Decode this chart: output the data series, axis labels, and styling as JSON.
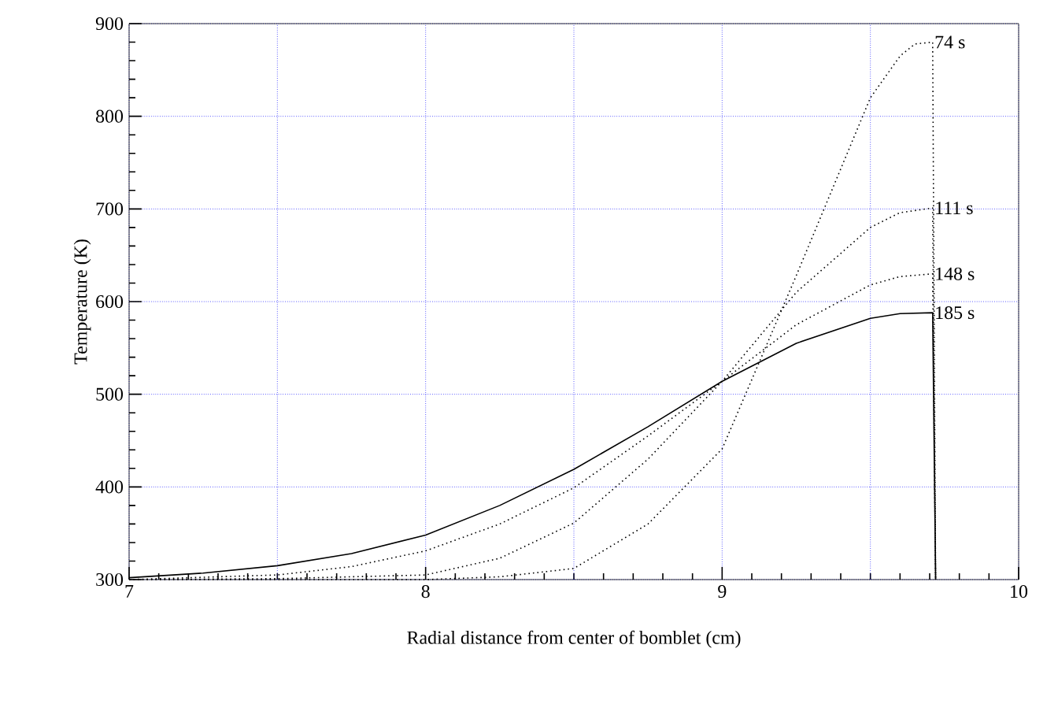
{
  "chart_data": {
    "type": "line",
    "xlabel": "Radial distance from center of bomblet (cm)",
    "ylabel": "Temperature (K)",
    "xlim": [
      7,
      10
    ],
    "ylim": [
      300,
      900
    ],
    "xticks": [
      7,
      8,
      9,
      10
    ],
    "yticks": [
      300,
      400,
      500,
      600,
      700,
      800,
      900
    ],
    "grid": true,
    "series": [
      {
        "name": "74 s",
        "color": "#000000",
        "line_style": "dotted",
        "x": [
          7,
          8,
          8.25,
          8.5,
          8.75,
          9,
          9.25,
          9.5,
          9.6,
          9.65,
          9.71,
          9.72
        ],
        "values": [
          300,
          300,
          303,
          312,
          360,
          441,
          628,
          820,
          865,
          878,
          880,
          300
        ]
      },
      {
        "name": "111 s",
        "color": "#000000",
        "line_style": "dotted",
        "x": [
          7,
          7.5,
          8,
          8.25,
          8.5,
          8.75,
          9,
          9.25,
          9.5,
          9.6,
          9.71,
          9.72
        ],
        "values": [
          300,
          301,
          305,
          323,
          361,
          430,
          514,
          610,
          680,
          696,
          701,
          300
        ]
      },
      {
        "name": "148 s",
        "color": "#000000",
        "line_style": "dotted",
        "x": [
          7,
          7.5,
          7.75,
          8,
          8.25,
          8.5,
          8.75,
          9,
          9.25,
          9.5,
          9.6,
          9.71,
          9.72
        ],
        "values": [
          300,
          305,
          314,
          331,
          360,
          399,
          455,
          514,
          575,
          618,
          627,
          630,
          300
        ]
      },
      {
        "name": "185 s",
        "color": "#000000",
        "line_style": "solid",
        "x": [
          7,
          7.25,
          7.5,
          7.75,
          8,
          8.25,
          8.5,
          8.75,
          9,
          9.25,
          9.5,
          9.6,
          9.71,
          9.72
        ],
        "values": [
          302,
          307,
          315,
          328,
          348,
          380,
          419,
          465,
          514,
          555,
          582,
          587,
          588,
          300
        ]
      }
    ]
  }
}
